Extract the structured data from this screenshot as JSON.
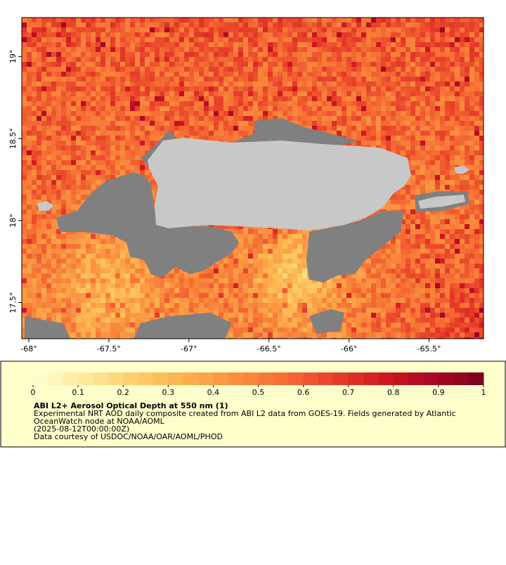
{
  "map": {
    "xlim": [
      -68.044,
      -65.16
    ],
    "ylim": [
      17.28,
      19.237
    ],
    "xticks": [
      {
        "value": -68,
        "label": "-68°"
      },
      {
        "value": -67.5,
        "label": "-67.5°"
      },
      {
        "value": -67,
        "label": "-67°"
      },
      {
        "value": -66.5,
        "label": "-66.5°"
      },
      {
        "value": -66,
        "label": "-66°"
      },
      {
        "value": -65.5,
        "label": "-65.5°"
      }
    ],
    "yticks": [
      {
        "value": 17.5,
        "label": "17.5°"
      },
      {
        "value": 18,
        "label": "18°"
      },
      {
        "value": 18.5,
        "label": "18.5°"
      },
      {
        "value": 19,
        "label": "19°"
      }
    ],
    "land_color": "#c8c8c8",
    "nodata_color": "#808080"
  },
  "colorbar": {
    "range": [
      0,
      1
    ],
    "ticks": [
      0,
      0.1,
      0.2,
      0.3,
      0.4,
      0.5,
      0.6,
      0.7,
      0.8,
      0.9,
      1
    ],
    "colors": [
      "#ffffd4",
      "#feeaa0",
      "#fdcf6a",
      "#fdb24e",
      "#fa9240",
      "#f66d34",
      "#e8402a",
      "#d0181f",
      "#a80823",
      "#7a0020"
    ]
  },
  "caption": {
    "title": "ABI L2+ Aerosol Optical Depth at 550 nm (1)",
    "lines": [
      "Experimental NRT AOD daily composite created from ABI L2 data from GOES-19. Fields generated by Atlantic",
      "OceanWatch node at NOAA/AOML",
      "(2025-08-12T00:00:00Z)",
      "Data courtesy of USDOC/NOAA/OAR/AOML/PHOD"
    ]
  }
}
